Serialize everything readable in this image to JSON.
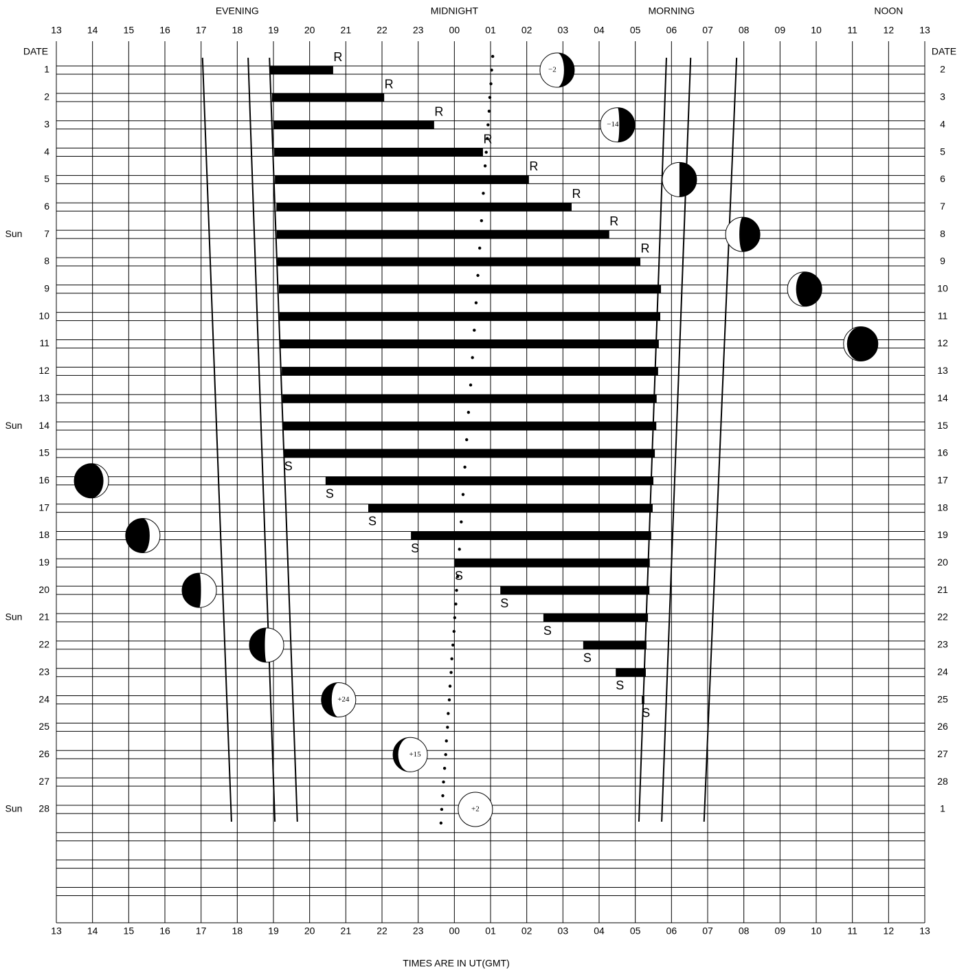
{
  "chart_data": {
    "type": "timeline",
    "x_title": "TIMES ARE IN UT(GMT)",
    "date_header": "DATE",
    "date_header_right": "DATE",
    "period_labels": [
      {
        "label": "EVENING",
        "x": 18
      },
      {
        "label": "MIDNIGHT",
        "x": 24
      },
      {
        "label": "MORNING",
        "x": 30
      },
      {
        "label": "NOON",
        "x": 36
      }
    ],
    "xlim": [
      13,
      37
    ],
    "xticks": [
      13,
      14,
      15,
      16,
      17,
      18,
      19,
      20,
      21,
      22,
      23,
      {
        "value": 24,
        "label": "00"
      },
      {
        "value": 25,
        "label": "01"
      },
      {
        "value": 26,
        "label": "02"
      },
      {
        "value": 27,
        "label": "03"
      },
      {
        "value": 28,
        "label": "04"
      },
      {
        "value": 29,
        "label": "05"
      },
      {
        "value": 30,
        "label": "06"
      },
      {
        "value": 31,
        "label": "07"
      },
      {
        "value": 32,
        "label": "08"
      },
      {
        "value": 33,
        "label": "09"
      },
      {
        "value": 34,
        "label": "10"
      },
      {
        "value": 35,
        "label": "11"
      },
      {
        "value": 36,
        "label": "12"
      },
      {
        "value": 37,
        "label": "13"
      }
    ],
    "categories": [
      "1",
      "2",
      "3",
      "4",
      "5",
      "6",
      "7",
      "8",
      "9",
      "10",
      "11",
      "12",
      "13",
      "14",
      "15",
      "16",
      "17",
      "18",
      "19",
      "20",
      "21",
      "22",
      "23",
      "24",
      "25",
      "26",
      "27",
      "28"
    ],
    "right_dates": [
      "2",
      "3",
      "4",
      "5",
      "6",
      "7",
      "8",
      "9",
      "10",
      "11",
      "12",
      "13",
      "14",
      "15",
      "16",
      "17",
      "18",
      "19",
      "20",
      "21",
      "22",
      "23",
      "24",
      "25",
      "26",
      "27",
      "28",
      "1"
    ],
    "weekdays": [
      null,
      null,
      null,
      null,
      null,
      null,
      "Sun",
      null,
      null,
      null,
      null,
      null,
      null,
      "Sun",
      null,
      null,
      null,
      null,
      null,
      null,
      "Sun",
      null,
      null,
      null,
      null,
      null,
      null,
      "Sun"
    ],
    "bar_color": "#000000",
    "bar_start": [
      18.91,
      18.96,
      19.0,
      19.02,
      19.04,
      19.08,
      19.09,
      19.11,
      19.15,
      19.17,
      19.19,
      19.23,
      19.25,
      19.27,
      19.3,
      20.44,
      21.62,
      22.8,
      24.01,
      25.27,
      26.46,
      27.56,
      28.46,
      29.18,
      null,
      null,
      null,
      null
    ],
    "bar_end": [
      20.65,
      22.06,
      23.44,
      24.79,
      26.06,
      27.24,
      28.28,
      29.14,
      29.71,
      29.69,
      29.65,
      29.63,
      29.59,
      29.58,
      29.54,
      29.5,
      29.48,
      29.44,
      29.4,
      29.39,
      29.35,
      29.31,
      29.29,
      29.25,
      null,
      null,
      null,
      null
    ],
    "event_labels": [
      "R",
      "R",
      "R",
      "R",
      "R",
      "R",
      "R",
      "R",
      null,
      null,
      null,
      null,
      null,
      null,
      "S",
      "S",
      "S",
      "S",
      "S",
      "S",
      "S",
      "S",
      "S",
      "S",
      null,
      null,
      null,
      null
    ],
    "twilight_dates": [
      0.55,
      28.45
    ],
    "twilight": [
      [
        17.04,
        17.84
      ],
      [
        18.3,
        19.04
      ],
      [
        18.89,
        19.66
      ],
      [
        29.86,
        29.1
      ],
      [
        30.53,
        29.73
      ],
      [
        31.8,
        30.9
      ]
    ],
    "transit": {
      "dates": [
        0.5,
        1,
        1.5,
        2,
        2.5,
        3,
        3.5,
        4,
        4.5,
        5,
        5.5,
        6,
        6.5,
        7,
        7.5,
        8,
        8.5,
        9,
        9.5,
        10,
        10.5,
        11,
        11.5,
        12,
        12.5,
        13,
        13.5,
        14,
        14.5,
        15,
        15.5,
        16,
        16.5,
        17,
        17.5,
        18,
        18.5,
        19,
        19.5,
        20,
        20.5,
        21,
        21.5,
        22,
        22.5,
        23,
        23.5,
        24,
        24.5,
        25,
        25.5,
        26,
        26.5,
        27,
        27.5,
        28,
        28.5
      ],
      "times": [
        25.06,
        25.03,
        25.01,
        24.98,
        24.96,
        24.93,
        24.91,
        24.88,
        24.85,
        24.83,
        24.8,
        24.78,
        24.75,
        24.73,
        24.7,
        24.68,
        24.65,
        24.62,
        24.6,
        24.57,
        24.55,
        24.52,
        24.5,
        24.47,
        24.45,
        24.42,
        24.39,
        24.37,
        24.34,
        24.32,
        24.29,
        24.27,
        24.24,
        24.22,
        24.19,
        24.16,
        24.14,
        24.11,
        24.09,
        24.06,
        24.04,
        24.01,
        23.99,
        23.96,
        23.93,
        23.91,
        23.88,
        23.86,
        23.83,
        23.81,
        23.78,
        23.76,
        23.73,
        23.7,
        23.68,
        23.65,
        23.63
      ]
    },
    "moons": [
      {
        "time": 26.84,
        "date": 1,
        "dark": 0.3,
        "side": "right",
        "label": "−2"
      },
      {
        "time": 28.51,
        "date": 3,
        "dark": 0.45,
        "side": "right",
        "label": "−14"
      },
      {
        "time": 30.22,
        "date": 5,
        "dark": 0.5,
        "side": "right"
      },
      {
        "time": 31.97,
        "date": 7,
        "dark": 0.6,
        "side": "right"
      },
      {
        "time": 33.68,
        "date": 9,
        "dark": 0.75,
        "side": "right"
      },
      {
        "time": 35.23,
        "date": 11,
        "dark": 0.9,
        "side": "right"
      },
      {
        "time": 13.97,
        "date": 16,
        "dark": 0.85,
        "side": "left"
      },
      {
        "time": 15.39,
        "date": 18,
        "dark": 0.7,
        "side": "left"
      },
      {
        "time": 16.95,
        "date": 20,
        "dark": 0.55,
        "side": "left"
      },
      {
        "time": 18.81,
        "date": 22,
        "dark": 0.45,
        "side": "left"
      },
      {
        "time": 20.8,
        "date": 24,
        "dark": 0.3,
        "side": "left",
        "label": "+24"
      },
      {
        "time": 22.78,
        "date": 26,
        "dark": 0.15,
        "side": "left",
        "label": "+15"
      },
      {
        "time": 24.58,
        "date": 28,
        "dark": 0,
        "side": "left",
        "label": "+2"
      }
    ]
  }
}
